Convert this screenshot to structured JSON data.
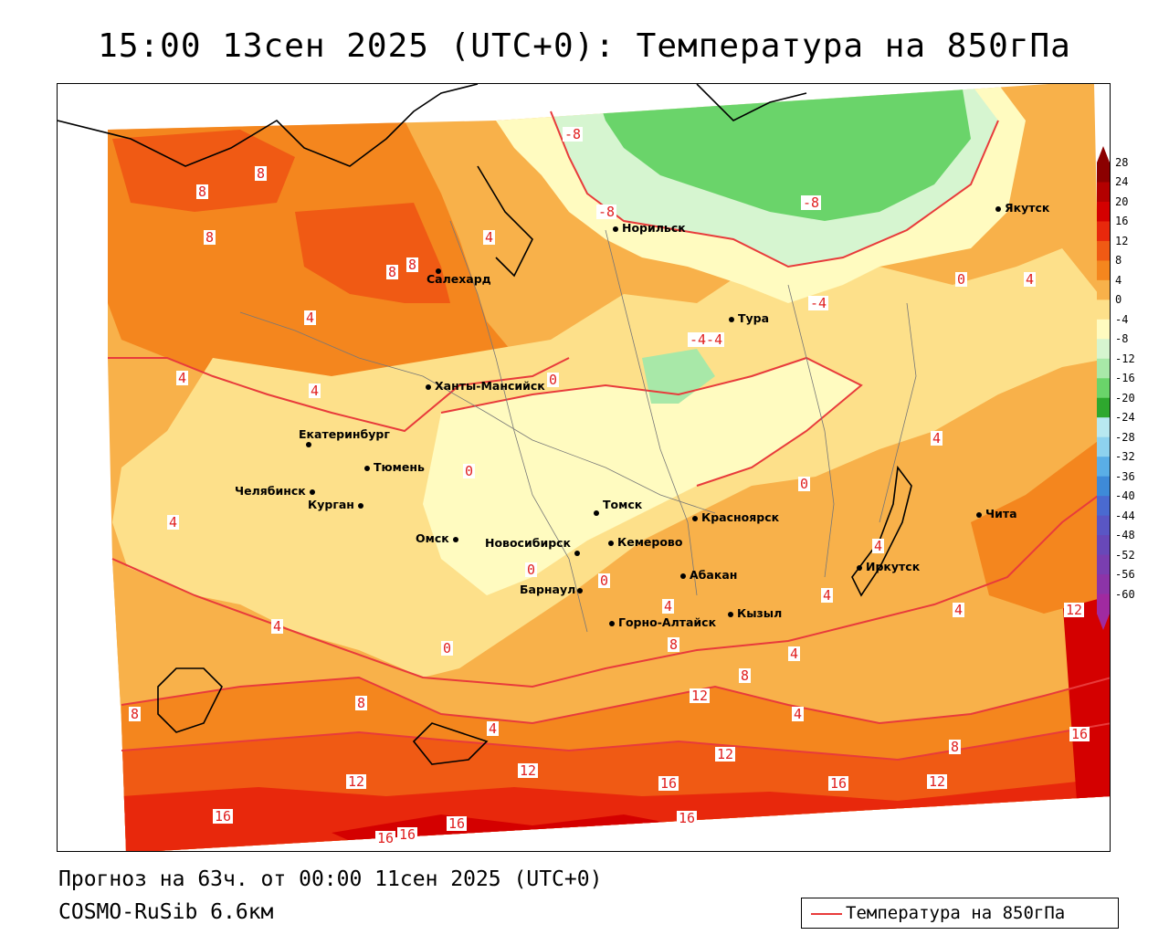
{
  "title": "15:00 13сен 2025 (UTC+0): Температура на 850гПа",
  "footer": {
    "forecast": "Прогноз на 63ч. от 00:00 11сен 2025 (UTC+0)",
    "model": "COSMO-RuSib 6.6км"
  },
  "legend": {
    "label": "Температура на 850гПа",
    "color": "#e83b3b"
  },
  "colorbar": {
    "labels": [
      "28",
      "24",
      "20",
      "16",
      "12",
      "8",
      "4",
      "0",
      "-4",
      "-8",
      "-12",
      "-16",
      "-20",
      "-24",
      "-28",
      "-32",
      "-36",
      "-40",
      "-44",
      "-48",
      "-52",
      "-56",
      "-60"
    ],
    "colors": [
      "#8b0000",
      "#b30000",
      "#d40000",
      "#e8280c",
      "#f05a14",
      "#f4861e",
      "#f8b14a",
      "#fde08a",
      "#fffbc0",
      "#d6f5d0",
      "#a8e8a8",
      "#6ad46a",
      "#2ea82e",
      "#b8e8f0",
      "#8ed2ee",
      "#5aaee6",
      "#3e8ad8",
      "#4a6ad0",
      "#5a56c4",
      "#6848b8",
      "#7a3eb0",
      "#8c34a8",
      "#a02aa0"
    ]
  },
  "cities": [
    {
      "name": "Салехард"
    },
    {
      "name": "Норильск"
    },
    {
      "name": "Якутск"
    },
    {
      "name": "Тура"
    },
    {
      "name": "Ханты-Мансийск"
    },
    {
      "name": "Екатеринбург"
    },
    {
      "name": "Тюмень"
    },
    {
      "name": "Челябинск"
    },
    {
      "name": "Курган"
    },
    {
      "name": "Омск"
    },
    {
      "name": "Новосибирск"
    },
    {
      "name": "Томск"
    },
    {
      "name": "Кемерово"
    },
    {
      "name": "Красноярск"
    },
    {
      "name": "Барнаул"
    },
    {
      "name": "Абакан"
    },
    {
      "name": "Горно-Алтайск"
    },
    {
      "name": "Кызыл"
    },
    {
      "name": "Иркутск"
    },
    {
      "name": "Чита"
    }
  ],
  "contour_labels": [
    "8",
    "8",
    "8",
    "8",
    "8",
    "4",
    "4",
    "4",
    "4",
    "-8",
    "-8",
    "-8",
    "-4-4",
    "0",
    "0",
    "0",
    "0",
    "0",
    "0",
    "4",
    "4",
    "4",
    "4",
    "4",
    "4",
    "8",
    "8",
    "8",
    "12",
    "12",
    "12",
    "12",
    "12",
    "12",
    "16",
    "16",
    "16",
    "16",
    "16",
    "16",
    "16",
    "16",
    "4",
    "0",
    "4",
    "8",
    "8",
    "4",
    "4",
    "-4",
    "4"
  ]
}
